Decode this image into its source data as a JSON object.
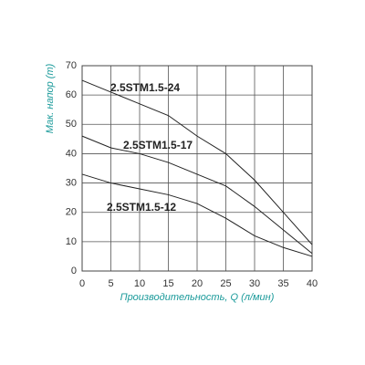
{
  "chart_data": {
    "type": "line",
    "x_label": "Производительность, Q (л/мин)",
    "y_label": "Мак. напор (m)",
    "x": [
      0,
      5,
      10,
      15,
      20,
      25,
      30,
      35,
      40
    ],
    "series": [
      {
        "name": "2.5STM1.5-24",
        "color": "#222222",
        "values": [
          65,
          61,
          57,
          53,
          46,
          40,
          31,
          20,
          9
        ]
      },
      {
        "name": "2.5STM1.5-17",
        "color": "#222222",
        "values": [
          46,
          42,
          40,
          37,
          33,
          29,
          22,
          14,
          6
        ]
      },
      {
        "name": "2.5STM1.5-12",
        "color": "#222222",
        "values": [
          33,
          30,
          28,
          26,
          23,
          18,
          12,
          8,
          5
        ]
      }
    ],
    "xlim": [
      0,
      40
    ],
    "xticks": [
      0,
      5,
      10,
      15,
      20,
      25,
      30,
      35,
      40
    ],
    "ylim": [
      0,
      70
    ],
    "yticks": [
      0,
      10,
      20,
      30,
      40,
      50,
      60,
      70
    ],
    "grid": true
  }
}
